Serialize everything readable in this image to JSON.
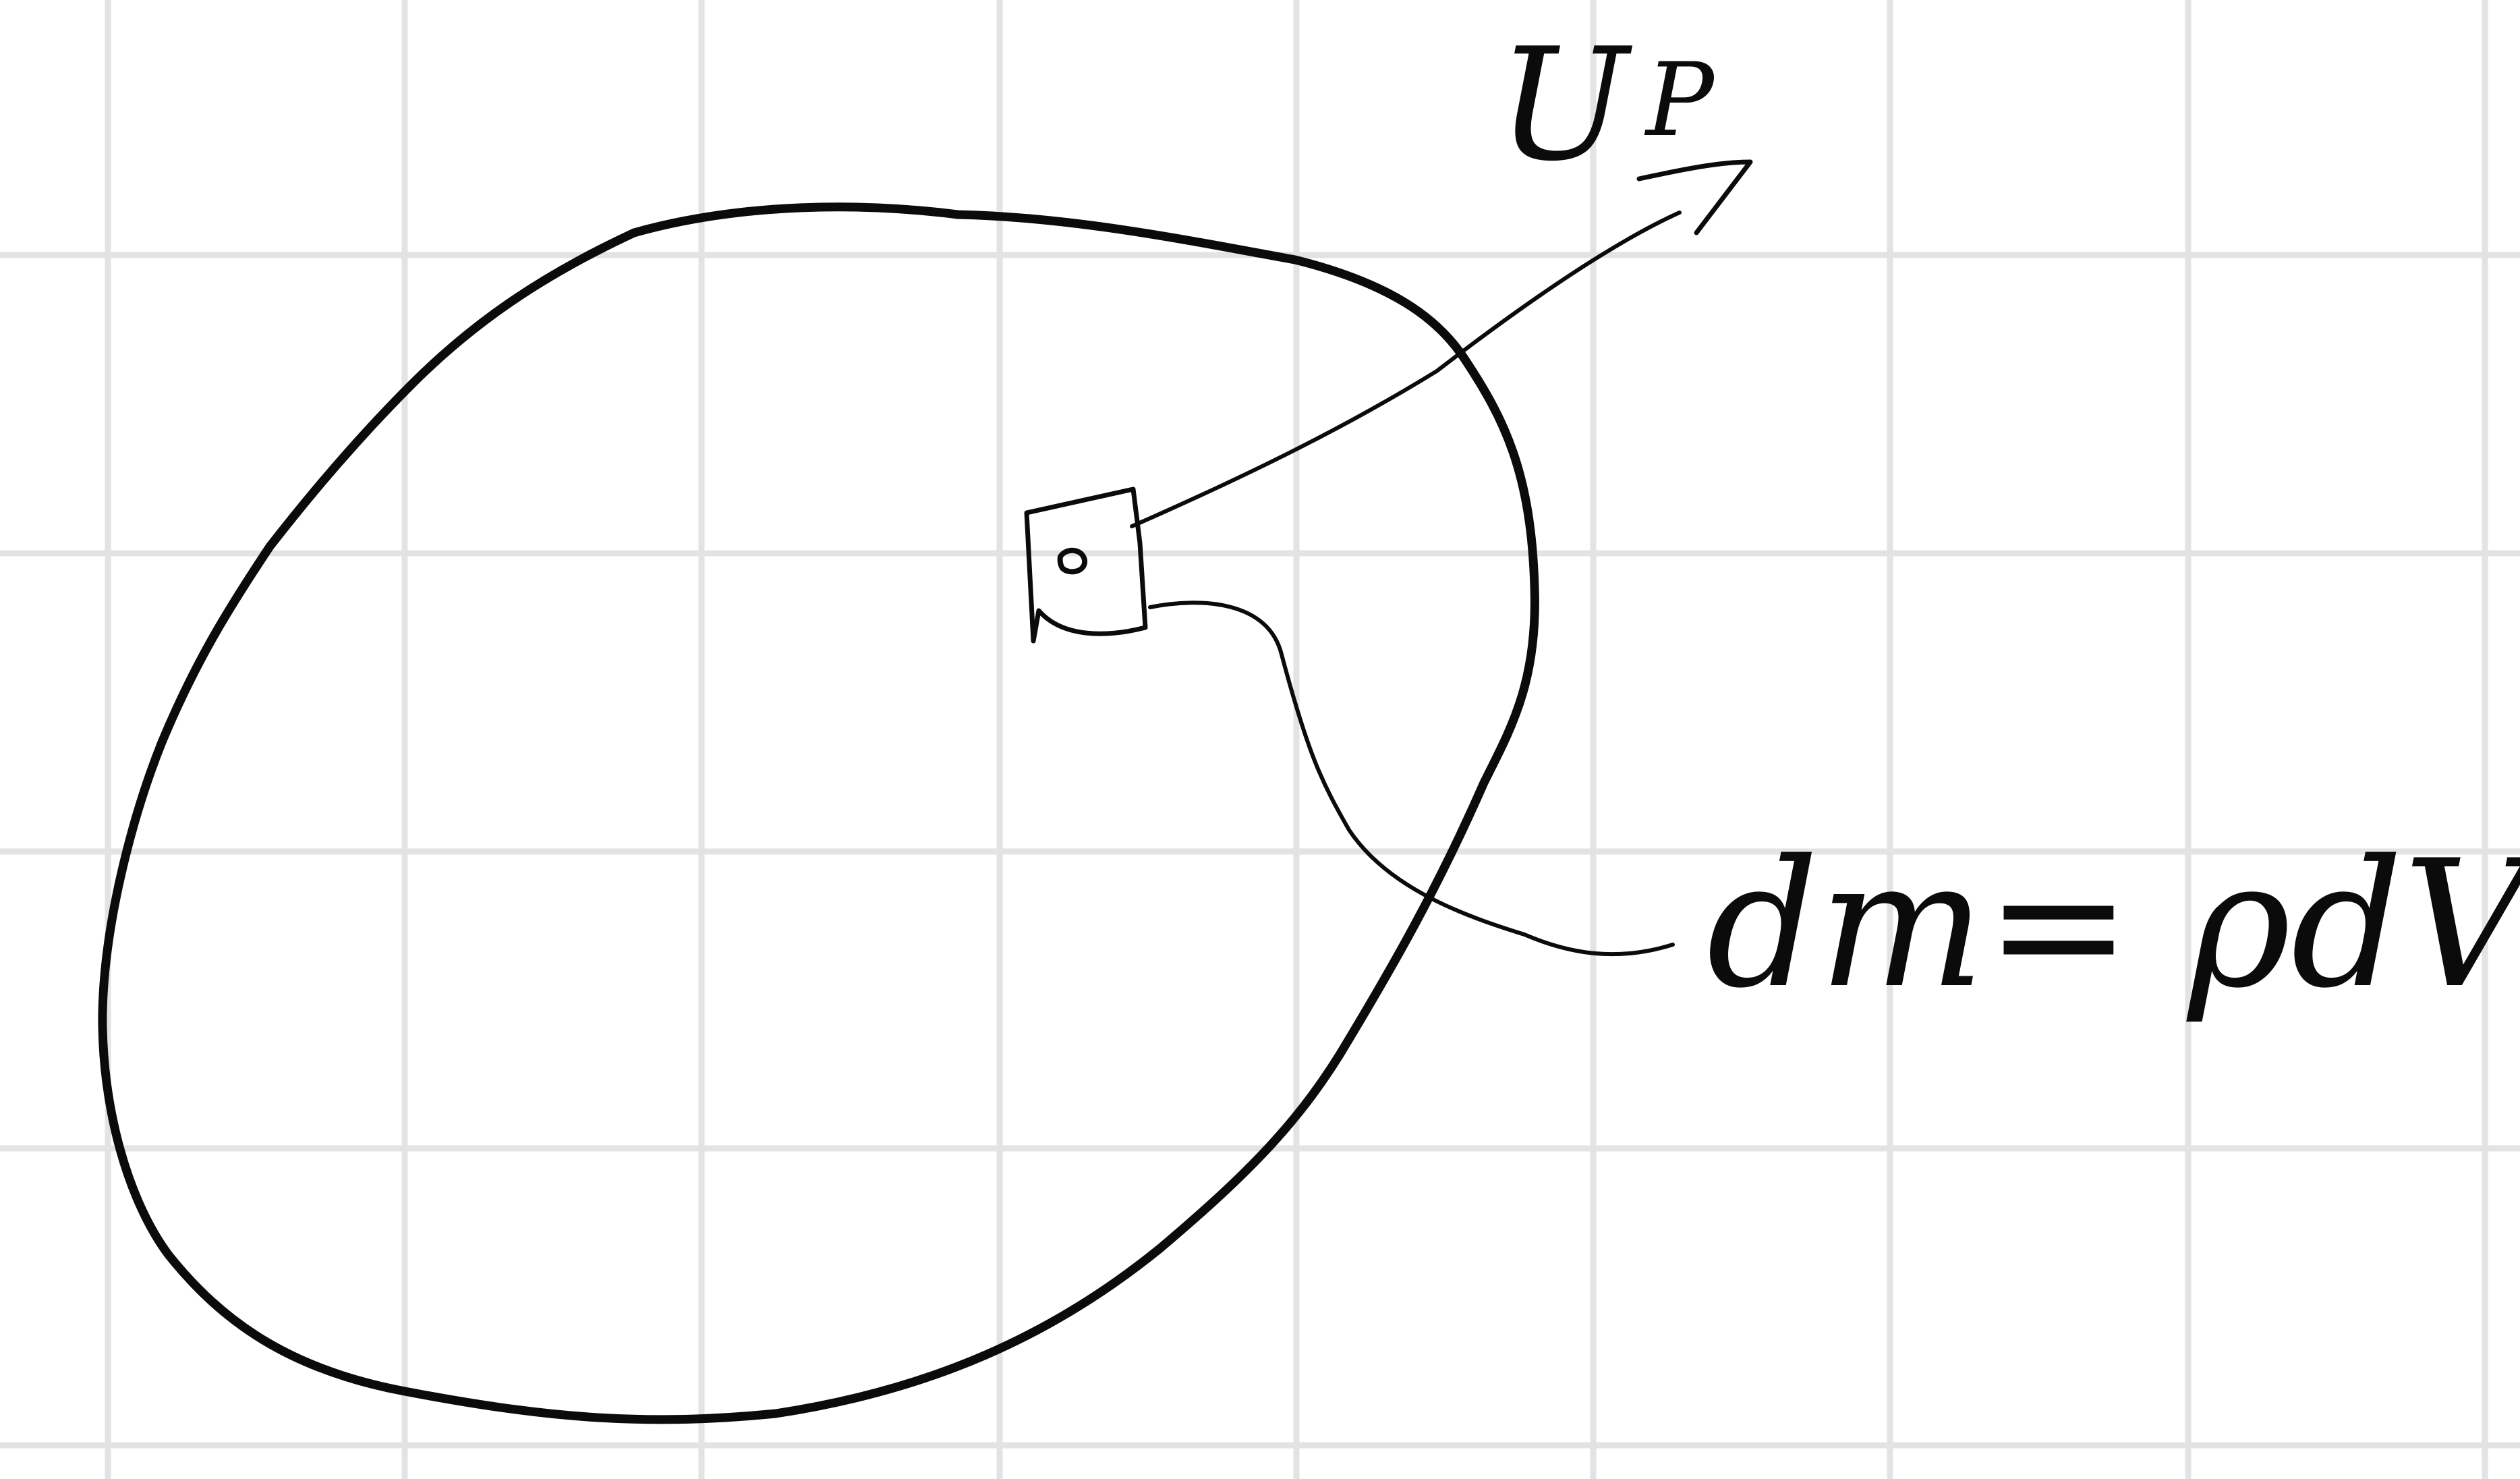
{
  "labels": {
    "potential": "U",
    "potential_subscript": "P",
    "mass_element": "dm= ρdV"
  },
  "colors": {
    "ink": "#0b0b0b",
    "grid": "#e3e3e6",
    "paper": "#ffffff"
  }
}
